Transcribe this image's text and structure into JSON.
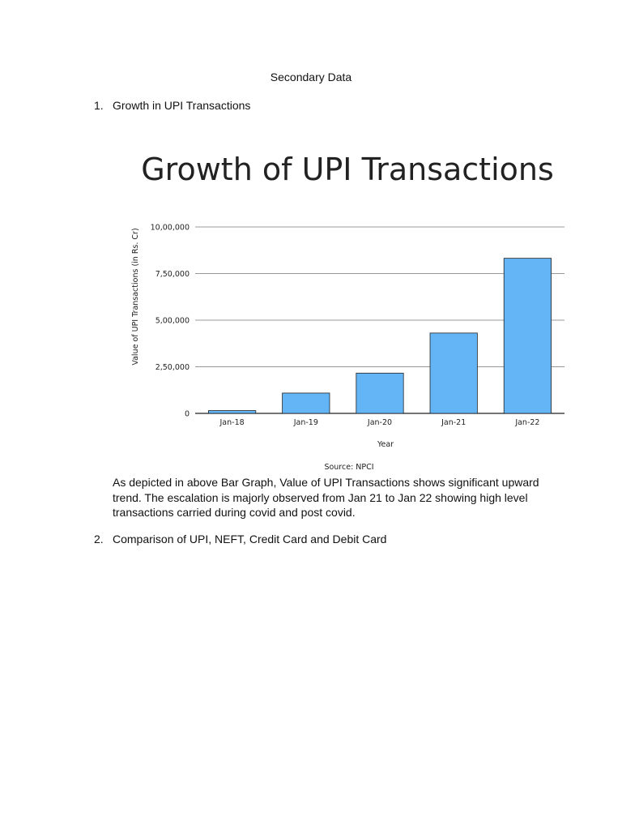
{
  "document": {
    "heading": "Secondary Data",
    "items": [
      {
        "number": "1.",
        "text": "Growth in UPI Transactions"
      },
      {
        "number": "2.",
        "text": "Comparison of UPI, NEFT, Credit Card and Debit Card"
      }
    ],
    "paragraph": "As depicted in above Bar Graph, Value of UPI Transactions shows significant upward trend. The escalation is majorly observed from Jan 21 to Jan 22 showing high level transactions carried during covid and post covid."
  },
  "chart_data": {
    "type": "bar",
    "title": "Growth of UPI Transactions",
    "xlabel": "Year",
    "ylabel": "Value of UPI Transactions (in Rs. Cr)",
    "source": "Source: NPCI",
    "categories": [
      "Jan-18",
      "Jan-19",
      "Jan-20",
      "Jan-21",
      "Jan-22"
    ],
    "values": [
      15000,
      109000,
      216000,
      431000,
      832000
    ],
    "ylim": [
      0,
      1000000
    ],
    "yticks": [
      0,
      250000,
      500000,
      750000,
      1000000
    ],
    "ytick_labels": [
      "0",
      "2,50,000",
      "5,00,000",
      "7,50,000",
      "10,00,000"
    ],
    "grid": true,
    "legend": "none",
    "colors": {
      "bar_fill": "#64b5f6",
      "bar_stroke": "#222222",
      "grid": "#999999"
    }
  }
}
